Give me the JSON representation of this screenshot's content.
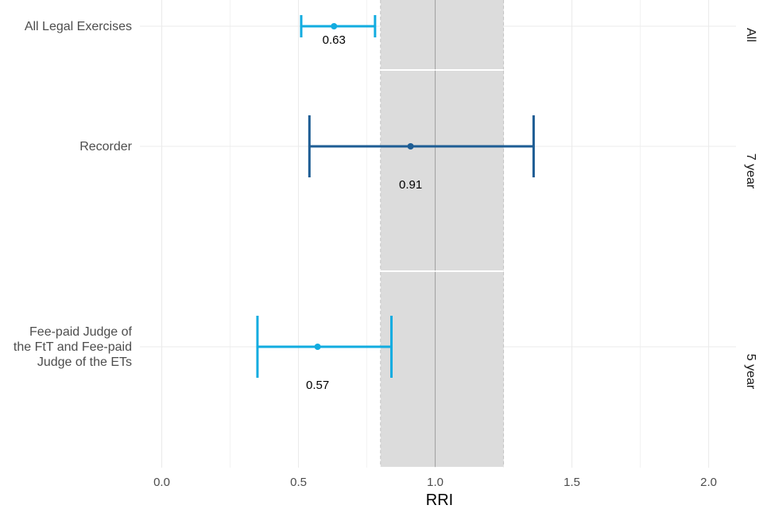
{
  "chart_data": {
    "type": "forest",
    "xlabel": "RRI",
    "xlim": [
      -0.08,
      2.1
    ],
    "xticks": [
      0.0,
      0.5,
      1.0,
      1.5,
      2.0
    ],
    "x_tick_labels": [
      "0.0",
      "0.5",
      "1.0",
      "1.5",
      "2.0"
    ],
    "reference_line": 1.0,
    "reference_band": [
      0.8,
      1.25
    ],
    "grid": true,
    "colors": {
      "light_blue": "#12ace0",
      "dark_blue": "#1e5d94",
      "band": "#dcdcdc",
      "grid": "#ebebeb"
    },
    "panels": [
      {
        "facet": "All",
        "rows": [
          {
            "label": [
              "All Legal Exercises"
            ],
            "value": 0.63,
            "value_label": "0.63",
            "lower": 0.51,
            "upper": 0.78,
            "color": "#12ace0"
          }
        ]
      },
      {
        "facet": "7 year",
        "rows": [
          {
            "label": [
              "Recorder"
            ],
            "value": 0.91,
            "value_label": "0.91",
            "lower": 0.54,
            "upper": 1.36,
            "color": "#1e5d94"
          }
        ]
      },
      {
        "facet": "5 year",
        "rows": [
          {
            "label": [
              "Fee-paid Judge of",
              "the FtT and Fee-paid",
              "Judge of the ETs"
            ],
            "value": 0.57,
            "value_label": "0.57",
            "lower": 0.35,
            "upper": 0.84,
            "color": "#12ace0"
          }
        ]
      }
    ]
  }
}
